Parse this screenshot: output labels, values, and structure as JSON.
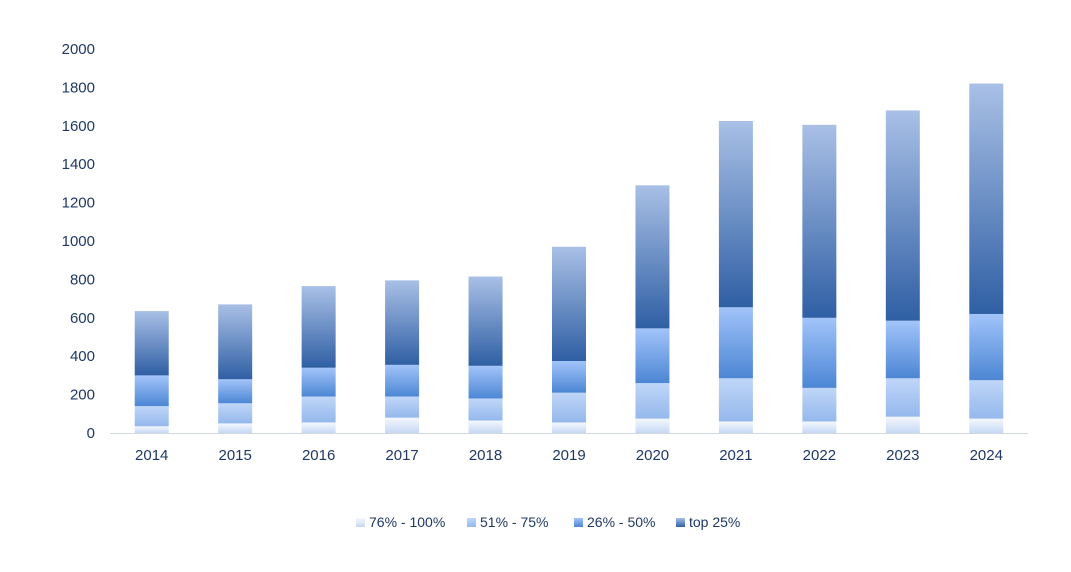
{
  "chart_data": {
    "type": "bar",
    "stacked": true,
    "categories": [
      "2014",
      "2015",
      "2016",
      "2017",
      "2018",
      "2019",
      "2020",
      "2021",
      "2022",
      "2023",
      "2024"
    ],
    "series": [
      {
        "name": "76% - 100%",
        "values": [
          35,
          50,
          55,
          80,
          65,
          55,
          75,
          60,
          60,
          85,
          75
        ]
      },
      {
        "name": "51% - 75%",
        "values": [
          105,
          105,
          135,
          110,
          115,
          155,
          185,
          225,
          175,
          200,
          200
        ]
      },
      {
        "name": "26% - 50%",
        "values": [
          160,
          125,
          150,
          165,
          170,
          165,
          285,
          370,
          365,
          300,
          345
        ]
      },
      {
        "name": "top 25%",
        "values": [
          335,
          390,
          425,
          440,
          465,
          595,
          745,
          970,
          1005,
          1095,
          1200
        ]
      }
    ],
    "yticks": [
      "0",
      "200",
      "400",
      "600",
      "800",
      "1000",
      "1200",
      "1400",
      "1600",
      "1800",
      "2000"
    ],
    "ylim": [
      0,
      2000
    ],
    "grid": false,
    "legend_position": "bottom",
    "colors": {
      "76% - 100%": [
        "#f4f8fe",
        "#c6d8f4"
      ],
      "51% - 75%": [
        "#c0d6f8",
        "#94b8ec"
      ],
      "26% - 50%": [
        "#a2c4fa",
        "#4c86d4"
      ],
      "top 25%": [
        "#a9c0e6",
        "#2f5fa4"
      ]
    },
    "axis_color": "#d0d8e4",
    "text_color": "#1f3864"
  }
}
